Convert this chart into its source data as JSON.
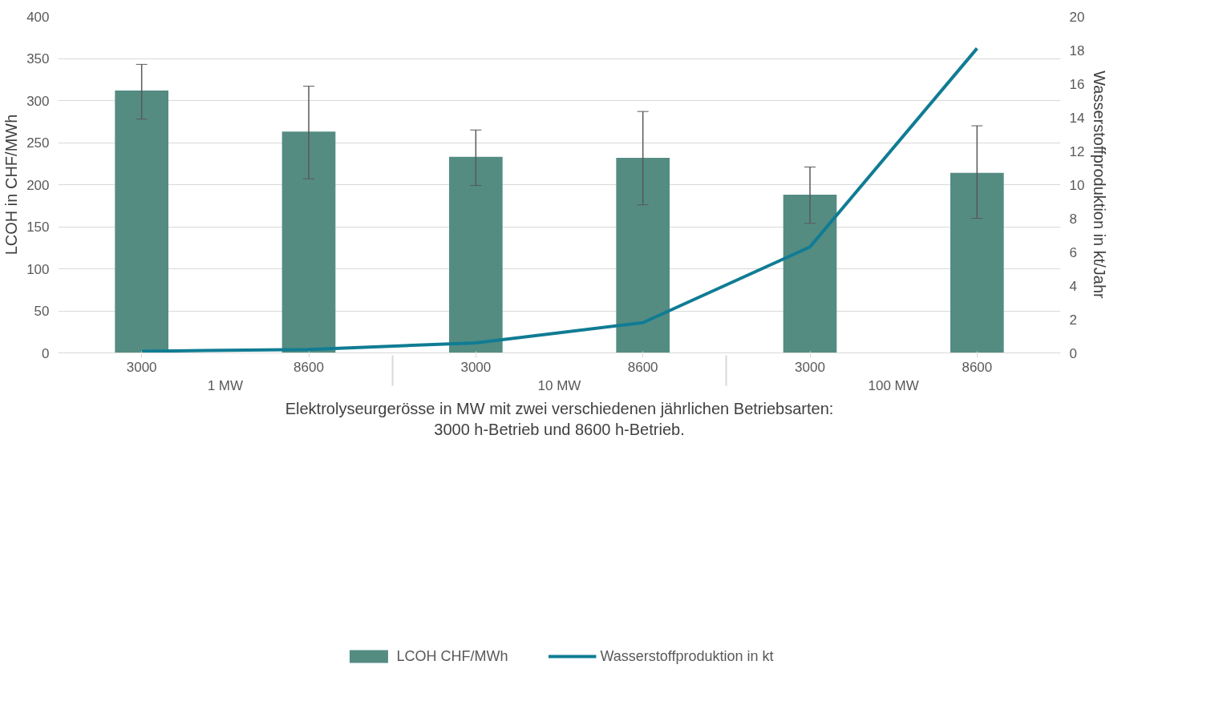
{
  "chart_data": {
    "type": "bar",
    "categories": [
      "3000",
      "8600",
      "3000",
      "8600",
      "3000",
      "8600"
    ],
    "annotations": [
      "1 MW",
      "10 MW",
      "100 MW"
    ],
    "xlabel": "Elektrolyseurgerösse in MW mit zwei verschiedenen jährlichen Betriebsarten: 3000 h-Betrieb und 8600 h-Betrieb.",
    "ylabel": "LCOH in CHF/MWh",
    "y2label": "Wasserstoffproduktion in kt/Jahr",
    "series": [
      {
        "name": "LCOH CHF/MWh",
        "color": "#548c82",
        "values": [
          312,
          263,
          233,
          232,
          188,
          214
        ],
        "errors": [
          [
            278,
            343
          ],
          [
            207,
            317
          ],
          [
            199,
            265
          ],
          [
            176,
            287
          ],
          [
            154,
            221
          ],
          [
            160,
            270
          ]
        ]
      },
      {
        "name": "Wasserstoffproduktion in kt",
        "type": "line",
        "axis": "y2",
        "color": "#107c94",
        "values": [
          0.1,
          0.2,
          0.6,
          1.8,
          6.3,
          18.1
        ]
      }
    ],
    "ylim": [
      0,
      400
    ],
    "yticks": [
      0,
      50,
      100,
      150,
      200,
      250,
      300,
      350,
      400
    ],
    "y2lim": [
      0,
      20
    ],
    "y2ticks": [
      0,
      2,
      4,
      6,
      8,
      10,
      12,
      14,
      16,
      18,
      20
    ],
    "grid": "y",
    "legend": "bottom",
    "marker": "none",
    "line_style": "solid"
  }
}
